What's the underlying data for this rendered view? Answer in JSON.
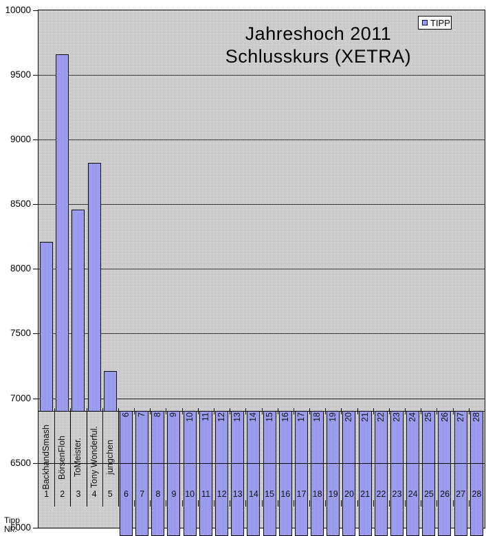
{
  "title": {
    "line1": "Jahreshoch 2011",
    "line2": "Schlusskurs (XETRA)"
  },
  "legend": {
    "label": "TIPP"
  },
  "y_axis": {
    "tick_labels": [
      "10000",
      "9500",
      "9000",
      "8500",
      "8000",
      "7500",
      "7000",
      "6500",
      "6000"
    ]
  },
  "x_axis": {
    "title_line1": "Tipp",
    "title_line2": "Nr.:"
  },
  "colors": {
    "bar_fill": "#9b9bf0",
    "bar_border": "#000000",
    "plot_background": "#d8d8d8",
    "plot_pattern_dot": "#a8a8a8",
    "gridline": "#2f2f2f",
    "legend_marker": "#9b9bf0"
  },
  "chart_data": {
    "type": "bar",
    "title": "Jahreshoch 2011 Schlusskurs (XETRA)",
    "legend_entries": [
      "TIPP"
    ],
    "legend_position": "top-right",
    "grid": true,
    "ylim": [
      6000,
      10000
    ],
    "y_major_unit": 500,
    "category_axis_crossing": 6900,
    "categories": [
      "BackhandSmash",
      "BörsenFloh",
      "ToMeister.",
      "Tony Wonderful.",
      "jungchen",
      "6",
      "7",
      "8",
      "9",
      "10",
      "11",
      "12",
      "13",
      "14",
      "15",
      "16",
      "17",
      "18",
      "19",
      "20",
      "21",
      "22",
      "23",
      "24",
      "25",
      "26",
      "27",
      "28"
    ],
    "tip_numbers": [
      "1",
      "2",
      "3",
      "4",
      "5",
      "6",
      "7",
      "8",
      "9",
      "10",
      "11",
      "12",
      "13",
      "14",
      "15",
      "16",
      "17",
      "18",
      "19",
      "20",
      "21",
      "22",
      "23",
      "24",
      "25",
      "26",
      "27",
      "28"
    ],
    "series": [
      {
        "name": "TIPP",
        "values": [
          8210,
          9660,
          8460,
          8820,
          7210,
          null,
          null,
          null,
          null,
          null,
          null,
          null,
          null,
          null,
          null,
          null,
          null,
          null,
          null,
          null,
          null,
          null,
          null,
          null,
          null,
          null,
          null,
          null
        ]
      }
    ],
    "empty_value_rendering": "bars for categories 6-28 hang from the category axis crossing down past the plot bottom"
  }
}
